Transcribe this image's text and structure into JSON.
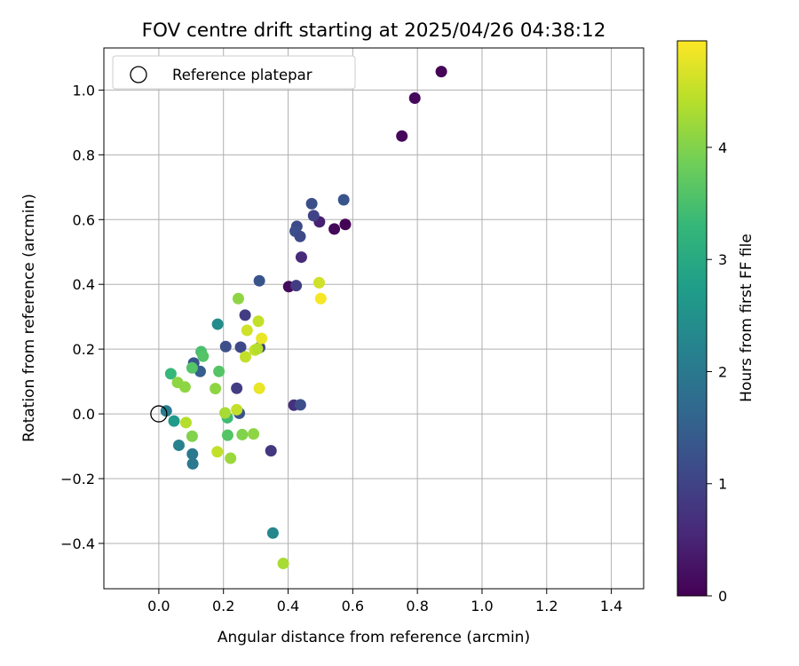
{
  "chart_data": {
    "type": "scatter",
    "title": "FOV centre drift starting at 2025/04/26 04:38:12",
    "xlabel": "Angular distance from reference (arcmin)",
    "ylabel": "Rotation from reference (arcmin)",
    "xlim": [
      -0.17,
      1.5
    ],
    "ylim": [
      -0.54,
      1.13
    ],
    "x_ticks": [
      0.0,
      0.2,
      0.4,
      0.6,
      0.8,
      1.0,
      1.2,
      1.4
    ],
    "x_tick_labels": [
      "0.0",
      "0.2",
      "0.4",
      "0.6",
      "0.8",
      "1.0",
      "1.2",
      "1.4"
    ],
    "y_ticks": [
      -0.4,
      -0.2,
      0.0,
      0.2,
      0.4,
      0.6,
      0.8,
      1.0
    ],
    "y_tick_labels": [
      "−0.4",
      "−0.2",
      "0.0",
      "0.2",
      "0.4",
      "0.6",
      "0.8",
      "1.0"
    ],
    "grid": true,
    "legend": {
      "position": "top-left",
      "entries": [
        {
          "label": "Reference platepar",
          "marker": "open-circle"
        }
      ]
    },
    "reference_point": {
      "x": 0.0,
      "y": 0.0
    },
    "colorbar": {
      "label": "Hours from first FF file",
      "colormap": "viridis",
      "range": [
        0,
        4.95
      ],
      "ticks": [
        0,
        1,
        2,
        3,
        4
      ],
      "tick_labels": [
        "0",
        "1",
        "2",
        "3",
        "4"
      ]
    },
    "colors": [
      "#440154",
      "#482878",
      "#3e4989",
      "#31688e",
      "#26828e",
      "#1f9e89",
      "#35b779",
      "#6ece58",
      "#b5de2b",
      "#fde725"
    ],
    "points": [
      {
        "x": 0.874,
        "y": 1.057,
        "hours": 0.05
      },
      {
        "x": 0.792,
        "y": 0.975,
        "hours": 0.1
      },
      {
        "x": 0.752,
        "y": 0.858,
        "hours": 0.1
      },
      {
        "x": 0.577,
        "y": 0.585,
        "hours": 0.02
      },
      {
        "x": 0.543,
        "y": 0.571,
        "hours": 0.08
      },
      {
        "x": 0.402,
        "y": 0.393,
        "hours": 0.12
      },
      {
        "x": 0.497,
        "y": 0.593,
        "hours": 0.45
      },
      {
        "x": 0.441,
        "y": 0.484,
        "hours": 0.6
      },
      {
        "x": 0.479,
        "y": 0.612,
        "hours": 1.0
      },
      {
        "x": 0.473,
        "y": 0.649,
        "hours": 1.2
      },
      {
        "x": 0.572,
        "y": 0.661,
        "hours": 1.3
      },
      {
        "x": 0.427,
        "y": 0.579,
        "hours": 1.1
      },
      {
        "x": 0.422,
        "y": 0.564,
        "hours": 1.2
      },
      {
        "x": 0.437,
        "y": 0.548,
        "hours": 1.1
      },
      {
        "x": 0.311,
        "y": 0.411,
        "hours": 1.3
      },
      {
        "x": 0.425,
        "y": 0.396,
        "hours": 0.9
      },
      {
        "x": 0.267,
        "y": 0.305,
        "hours": 0.9
      },
      {
        "x": 0.207,
        "y": 0.208,
        "hours": 1.2
      },
      {
        "x": 0.253,
        "y": 0.206,
        "hours": 1.1
      },
      {
        "x": 0.312,
        "y": 0.205,
        "hours": 1.0
      },
      {
        "x": 0.108,
        "y": 0.157,
        "hours": 1.3
      },
      {
        "x": 0.128,
        "y": 0.131,
        "hours": 1.5
      },
      {
        "x": 0.241,
        "y": 0.079,
        "hours": 0.9
      },
      {
        "x": 0.418,
        "y": 0.027,
        "hours": 0.7
      },
      {
        "x": 0.438,
        "y": 0.028,
        "hours": 1.2
      },
      {
        "x": 0.249,
        "y": 0.002,
        "hours": 1.3
      },
      {
        "x": 0.347,
        "y": -0.114,
        "hours": 0.8
      },
      {
        "x": 0.023,
        "y": 0.009,
        "hours": 2.1
      },
      {
        "x": 0.047,
        "y": -0.022,
        "hours": 2.7
      },
      {
        "x": 0.062,
        "y": -0.097,
        "hours": 2.2
      },
      {
        "x": 0.104,
        "y": -0.124,
        "hours": 2.0
      },
      {
        "x": 0.105,
        "y": -0.154,
        "hours": 2.0
      },
      {
        "x": 0.182,
        "y": 0.277,
        "hours": 2.4
      },
      {
        "x": 0.353,
        "y": -0.368,
        "hours": 2.3
      },
      {
        "x": 0.037,
        "y": 0.124,
        "hours": 3.3
      },
      {
        "x": 0.131,
        "y": 0.192,
        "hours": 3.5
      },
      {
        "x": 0.137,
        "y": 0.178,
        "hours": 3.6
      },
      {
        "x": 0.103,
        "y": 0.142,
        "hours": 3.6
      },
      {
        "x": 0.186,
        "y": 0.131,
        "hours": 3.6
      },
      {
        "x": 0.212,
        "y": -0.012,
        "hours": 3.4
      },
      {
        "x": 0.213,
        "y": -0.066,
        "hours": 3.6
      },
      {
        "x": 0.058,
        "y": 0.097,
        "hours": 4.1
      },
      {
        "x": 0.081,
        "y": 0.083,
        "hours": 4.1
      },
      {
        "x": 0.103,
        "y": -0.069,
        "hours": 4.0
      },
      {
        "x": 0.175,
        "y": 0.078,
        "hours": 4.1
      },
      {
        "x": 0.246,
        "y": 0.356,
        "hours": 4.1
      },
      {
        "x": 0.258,
        "y": -0.064,
        "hours": 4.0
      },
      {
        "x": 0.293,
        "y": -0.062,
        "hours": 4.1
      },
      {
        "x": 0.084,
        "y": -0.027,
        "hours": 4.4
      },
      {
        "x": 0.205,
        "y": 0.003,
        "hours": 4.3
      },
      {
        "x": 0.222,
        "y": -0.137,
        "hours": 4.2
      },
      {
        "x": 0.181,
        "y": -0.117,
        "hours": 4.5
      },
      {
        "x": 0.241,
        "y": 0.013,
        "hours": 4.5
      },
      {
        "x": 0.268,
        "y": 0.176,
        "hours": 4.5
      },
      {
        "x": 0.273,
        "y": 0.258,
        "hours": 4.6
      },
      {
        "x": 0.297,
        "y": 0.197,
        "hours": 4.5
      },
      {
        "x": 0.305,
        "y": 0.201,
        "hours": 4.4
      },
      {
        "x": 0.308,
        "y": 0.286,
        "hours": 4.5
      },
      {
        "x": 0.318,
        "y": 0.233,
        "hours": 4.8
      },
      {
        "x": 0.311,
        "y": 0.079,
        "hours": 4.8
      },
      {
        "x": 0.496,
        "y": 0.405,
        "hours": 4.6
      },
      {
        "x": 0.501,
        "y": 0.356,
        "hours": 4.9
      },
      {
        "x": 0.385,
        "y": -0.462,
        "hours": 4.3
      }
    ]
  }
}
